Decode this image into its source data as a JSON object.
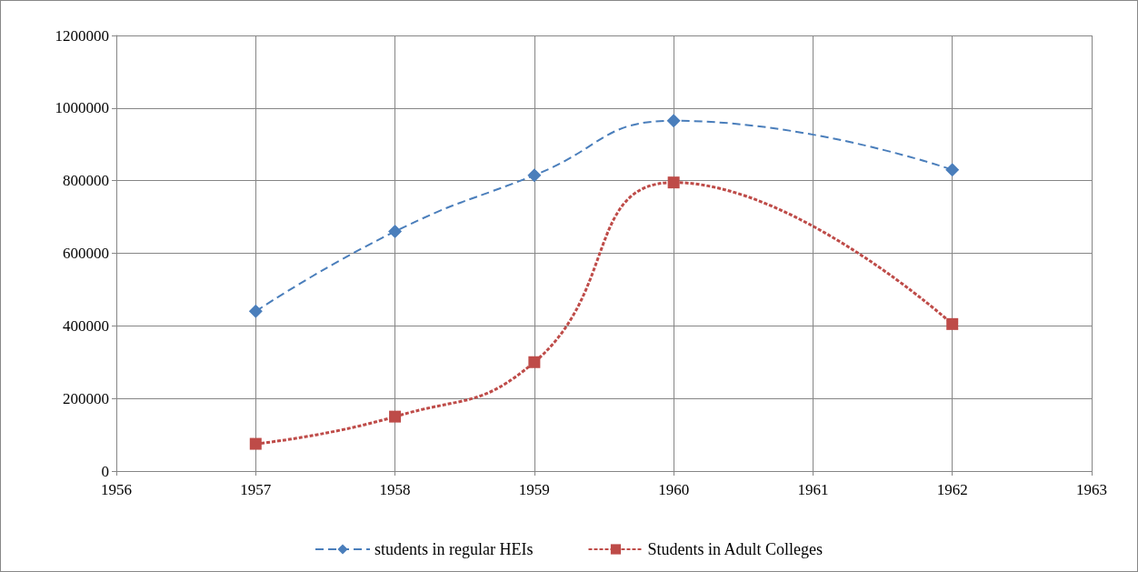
{
  "chart_data": {
    "type": "line",
    "x": [
      1957,
      1958,
      1959,
      1960,
      1962
    ],
    "series": [
      {
        "name": "students in regular HEIs",
        "color": "#4a7ebb",
        "values": [
          440000,
          660000,
          815000,
          965000,
          830000
        ],
        "marker": "diamond",
        "line_style": "dashed"
      },
      {
        "name": "Students in Adult Colleges",
        "color": "#be4b48",
        "values": [
          75000,
          150000,
          300000,
          795000,
          405000
        ],
        "marker": "square",
        "line_style": "dotted"
      }
    ],
    "xlim": [
      1956,
      1963
    ],
    "xticks": [
      1956,
      1957,
      1958,
      1959,
      1960,
      1961,
      1962,
      1963
    ],
    "ylim": [
      0,
      1200000
    ],
    "yticks": [
      0,
      200000,
      400000,
      600000,
      800000,
      1000000,
      1200000
    ],
    "grid": true,
    "legend": "bottom"
  }
}
